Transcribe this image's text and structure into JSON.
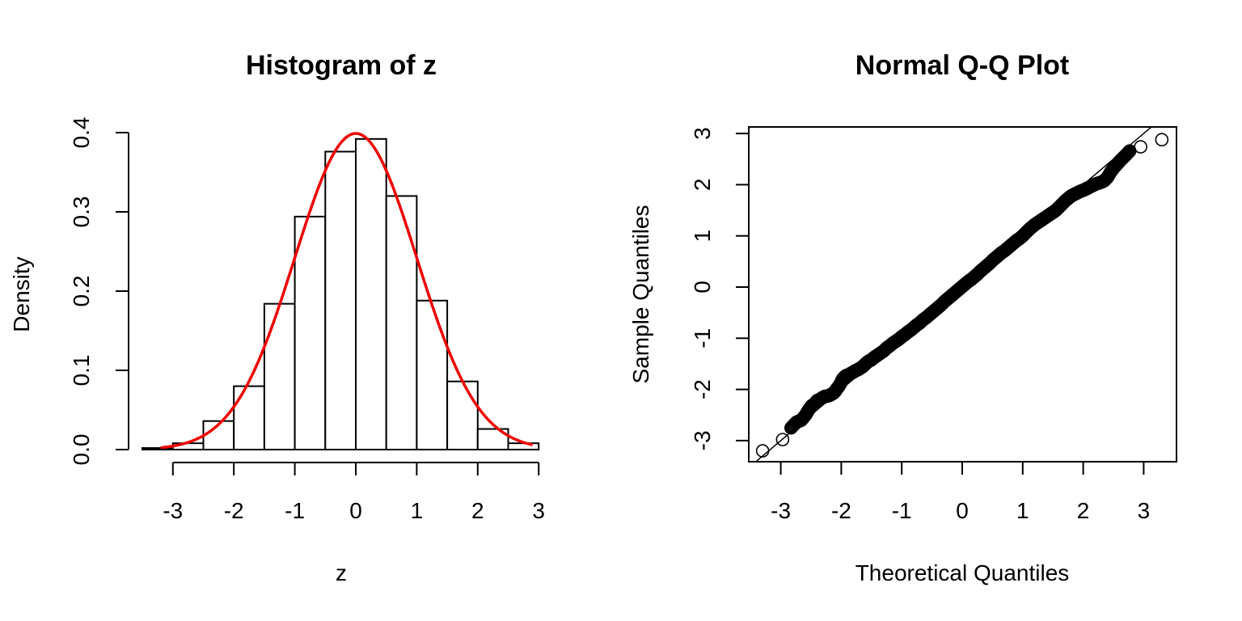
{
  "chart_data": [
    {
      "type": "bar",
      "subtype": "histogram",
      "title": "Histogram of z",
      "xlabel": "z",
      "ylabel": "Density",
      "xlim": [
        -3.2,
        3.2
      ],
      "ylim": [
        0,
        0.4
      ],
      "x_ticks": [
        -3,
        -2,
        -1,
        0,
        1,
        2,
        3
      ],
      "y_ticks": [
        0.0,
        0.1,
        0.2,
        0.3,
        0.4
      ],
      "y_tick_labels": [
        "0.0",
        "0.1",
        "0.2",
        "0.3",
        "0.4"
      ],
      "bins": [
        {
          "x0": -3.5,
          "x1": -3.0,
          "density": 0.002
        },
        {
          "x0": -3.0,
          "x1": -2.5,
          "density": 0.008
        },
        {
          "x0": -2.5,
          "x1": -2.0,
          "density": 0.036
        },
        {
          "x0": -2.0,
          "x1": -1.5,
          "density": 0.08
        },
        {
          "x0": -1.5,
          "x1": -1.0,
          "density": 0.184
        },
        {
          "x0": -1.0,
          "x1": -0.5,
          "density": 0.294
        },
        {
          "x0": -0.5,
          "x1": 0.0,
          "density": 0.376
        },
        {
          "x0": 0.0,
          "x1": 0.5,
          "density": 0.392
        },
        {
          "x0": 0.5,
          "x1": 1.0,
          "density": 0.32
        },
        {
          "x0": 1.0,
          "x1": 1.5,
          "density": 0.188
        },
        {
          "x0": 1.5,
          "x1": 2.0,
          "density": 0.086
        },
        {
          "x0": 2.0,
          "x1": 2.5,
          "density": 0.026
        },
        {
          "x0": 2.5,
          "x1": 3.0,
          "density": 0.008
        }
      ],
      "overlay": {
        "type": "line",
        "curve": "normal-density",
        "mean": 0,
        "sd": 1,
        "x_range": [
          -3.2,
          2.9
        ],
        "color": "#ee0000"
      }
    },
    {
      "type": "scatter",
      "subtype": "qq-plot",
      "title": "Normal Q-Q Plot",
      "xlabel": "Theoretical Quantiles",
      "ylabel": "Sample Quantiles",
      "xlim": [
        -3.5,
        3.5
      ],
      "ylim": [
        -3.45,
        3.15
      ],
      "x_ticks": [
        -3,
        -2,
        -1,
        0,
        1,
        2,
        3
      ],
      "y_ticks": [
        -3,
        -2,
        -1,
        0,
        1,
        2,
        3
      ],
      "n_points": 700,
      "reference_line": {
        "intercept": 0.0,
        "slope": 1.0
      },
      "points": [
        [
          -3.3,
          -3.2
        ],
        [
          -2.97,
          -2.98
        ],
        [
          -2.83,
          -2.75
        ],
        [
          -2.74,
          -2.64
        ],
        [
          -2.66,
          -2.6
        ],
        [
          -2.59,
          -2.5
        ],
        [
          -2.54,
          -2.4
        ],
        [
          -2.49,
          -2.32
        ],
        [
          -2.44,
          -2.28
        ],
        [
          -2.4,
          -2.22
        ],
        [
          -2.36,
          -2.2
        ],
        [
          -2.32,
          -2.17
        ],
        [
          -2.28,
          -2.14
        ],
        [
          -2.24,
          -2.13
        ],
        [
          -2.2,
          -2.12
        ],
        [
          -2.17,
          -2.1
        ],
        [
          -2.14,
          -2.08
        ],
        [
          -2.1,
          -2.04
        ],
        [
          -2.07,
          -1.98
        ],
        [
          -2.04,
          -1.94
        ],
        [
          -2.01,
          -1.88
        ],
        [
          -1.98,
          -1.8
        ],
        [
          -1.95,
          -1.76
        ],
        [
          -1.92,
          -1.73
        ],
        [
          -1.89,
          -1.72
        ],
        [
          -1.86,
          -1.7
        ],
        [
          -1.83,
          -1.68
        ],
        [
          -1.8,
          -1.66
        ],
        [
          -1.76,
          -1.63
        ],
        [
          -1.72,
          -1.61
        ],
        [
          -1.68,
          -1.58
        ],
        [
          -1.64,
          -1.55
        ],
        [
          -1.6,
          -1.5
        ],
        [
          -1.55,
          -1.45
        ],
        [
          -1.5,
          -1.42
        ],
        [
          -1.45,
          -1.37
        ],
        [
          -1.4,
          -1.33
        ],
        [
          -1.35,
          -1.29
        ],
        [
          -1.3,
          -1.25
        ],
        [
          -1.25,
          -1.19
        ],
        [
          -1.2,
          -1.15
        ],
        [
          -1.15,
          -1.1
        ],
        [
          -1.1,
          -1.06
        ],
        [
          -1.05,
          -1.02
        ],
        [
          -1.0,
          -0.97
        ],
        [
          -0.95,
          -0.93
        ],
        [
          -0.9,
          -0.88
        ],
        [
          -0.85,
          -0.84
        ],
        [
          -0.8,
          -0.79
        ],
        [
          -0.75,
          -0.74
        ],
        [
          -0.7,
          -0.7
        ],
        [
          -0.65,
          -0.64
        ],
        [
          -0.6,
          -0.6
        ],
        [
          -0.55,
          -0.55
        ],
        [
          -0.5,
          -0.5
        ],
        [
          -0.45,
          -0.45
        ],
        [
          -0.4,
          -0.4
        ],
        [
          -0.35,
          -0.35
        ],
        [
          -0.3,
          -0.29
        ],
        [
          -0.25,
          -0.24
        ],
        [
          -0.2,
          -0.19
        ],
        [
          -0.15,
          -0.14
        ],
        [
          -0.1,
          -0.09
        ],
        [
          -0.05,
          -0.04
        ],
        [
          0.0,
          0.01
        ],
        [
          0.05,
          0.06
        ],
        [
          0.1,
          0.11
        ],
        [
          0.15,
          0.15
        ],
        [
          0.2,
          0.2
        ],
        [
          0.25,
          0.25
        ],
        [
          0.3,
          0.31
        ],
        [
          0.35,
          0.36
        ],
        [
          0.4,
          0.41
        ],
        [
          0.45,
          0.46
        ],
        [
          0.5,
          0.52
        ],
        [
          0.55,
          0.57
        ],
        [
          0.6,
          0.62
        ],
        [
          0.65,
          0.67
        ],
        [
          0.7,
          0.71
        ],
        [
          0.75,
          0.76
        ],
        [
          0.8,
          0.81
        ],
        [
          0.85,
          0.86
        ],
        [
          0.9,
          0.91
        ],
        [
          0.95,
          0.95
        ],
        [
          1.0,
          1.0
        ],
        [
          1.05,
          1.06
        ],
        [
          1.1,
          1.12
        ],
        [
          1.15,
          1.17
        ],
        [
          1.2,
          1.22
        ],
        [
          1.25,
          1.26
        ],
        [
          1.3,
          1.3
        ],
        [
          1.35,
          1.34
        ],
        [
          1.4,
          1.38
        ],
        [
          1.45,
          1.42
        ],
        [
          1.5,
          1.46
        ],
        [
          1.55,
          1.5
        ],
        [
          1.6,
          1.56
        ],
        [
          1.65,
          1.62
        ],
        [
          1.7,
          1.68
        ],
        [
          1.75,
          1.73
        ],
        [
          1.8,
          1.78
        ],
        [
          1.85,
          1.81
        ],
        [
          1.9,
          1.84
        ],
        [
          1.95,
          1.87
        ],
        [
          2.0,
          1.89
        ],
        [
          2.05,
          1.92
        ],
        [
          2.1,
          1.95
        ],
        [
          2.15,
          1.98
        ],
        [
          2.2,
          2.01
        ],
        [
          2.25,
          2.03
        ],
        [
          2.3,
          2.05
        ],
        [
          2.35,
          2.08
        ],
        [
          2.4,
          2.14
        ],
        [
          2.45,
          2.24
        ],
        [
          2.5,
          2.32
        ],
        [
          2.56,
          2.4
        ],
        [
          2.62,
          2.48
        ],
        [
          2.69,
          2.56
        ],
        [
          2.77,
          2.66
        ],
        [
          2.95,
          2.74
        ],
        [
          3.3,
          2.88
        ]
      ],
      "marker": "open-circle"
    }
  ]
}
